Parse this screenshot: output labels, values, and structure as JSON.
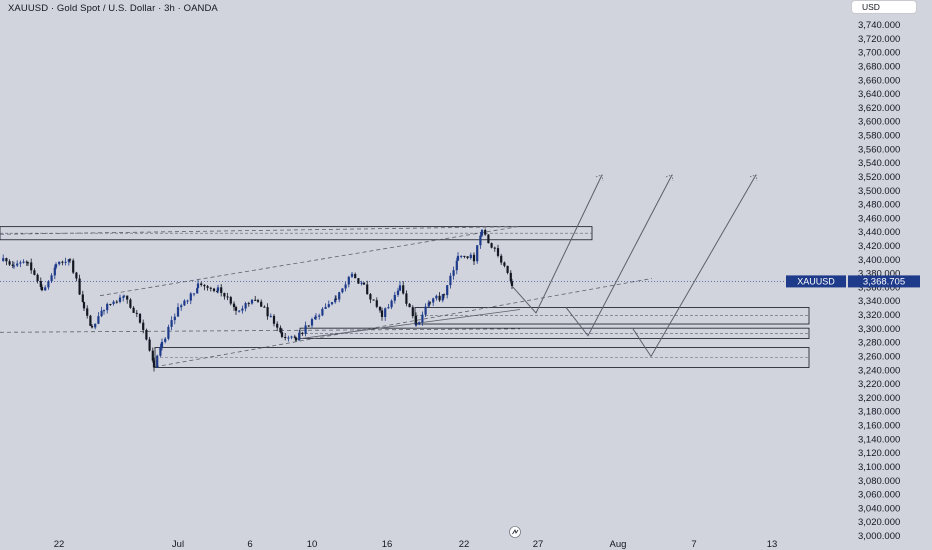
{
  "header": {
    "title": "XAUUSD · Gold Spot / U.S. Dollar · 3h · OANDA",
    "currency": "USD"
  },
  "colors": {
    "background": "#d1d4dc",
    "candle_up": "#1e3a8a",
    "candle_down": "#131722",
    "annotation": "#5d606b",
    "price_badge": "#1e3a8a",
    "text": "#131722"
  },
  "price_label": {
    "symbol": "XAUUSD",
    "value": "3,368.705",
    "price": 3368.705
  },
  "chart_data": {
    "type": "candlestick",
    "title": "XAUUSD · Gold Spot / U.S. Dollar · 3h · OANDA",
    "ylim": [
      3000,
      3760
    ],
    "y_ticks": [
      3000,
      3020,
      3040,
      3060,
      3080,
      3100,
      3120,
      3140,
      3160,
      3180,
      3200,
      3220,
      3240,
      3260,
      3280,
      3300,
      3320,
      3340,
      3360,
      3380,
      3400,
      3420,
      3440,
      3460,
      3480,
      3500,
      3520,
      3540,
      3560,
      3580,
      3600,
      3620,
      3640,
      3660,
      3680,
      3700,
      3720,
      3740
    ],
    "y_tick_labels": [
      "3,000.000",
      "3,020.000",
      "3,040.000",
      "3,060.000",
      "3,080.000",
      "3,100.000",
      "3,120.000",
      "3,140.000",
      "3,160.000",
      "3,180.000",
      "3,200.000",
      "3,220.000",
      "3,240.000",
      "3,260.000",
      "3,280.000",
      "3,300.000",
      "3,320.000",
      "3,340.000",
      "3,360.000",
      "3,380.000",
      "3,400.000",
      "3,420.000",
      "3,440.000",
      "3,460.000",
      "3,480.000",
      "3,500.000",
      "3,520.000",
      "3,540.000",
      "3,560.000",
      "3,580.000",
      "3,600.000",
      "3,620.000",
      "3,640.000",
      "3,660.000",
      "3,680.000",
      "3,700.000",
      "3,720.000",
      "3,740.000"
    ],
    "x_ticks": [
      "22",
      "Jul",
      "6",
      "10",
      "16",
      "22",
      "27",
      "Aug",
      "7",
      "13"
    ],
    "path": [
      [
        0,
        3402
      ],
      [
        14,
        3392
      ],
      [
        28,
        3398
      ],
      [
        42,
        3355
      ],
      [
        56,
        3392
      ],
      [
        70,
        3402
      ],
      [
        84,
        3330
      ],
      [
        92,
        3300
      ],
      [
        104,
        3330
      ],
      [
        124,
        3348
      ],
      [
        140,
        3312
      ],
      [
        154,
        3245
      ],
      [
        162,
        3278
      ],
      [
        178,
        3330
      ],
      [
        198,
        3362
      ],
      [
        218,
        3358
      ],
      [
        236,
        3328
      ],
      [
        258,
        3342
      ],
      [
        282,
        3292
      ],
      [
        296,
        3286
      ],
      [
        316,
        3318
      ],
      [
        336,
        3345
      ],
      [
        352,
        3380
      ],
      [
        364,
        3360
      ],
      [
        382,
        3320
      ],
      [
        400,
        3360
      ],
      [
        416,
        3306
      ],
      [
        430,
        3340
      ],
      [
        444,
        3348
      ],
      [
        458,
        3408
      ],
      [
        474,
        3402
      ],
      [
        482,
        3440
      ],
      [
        498,
        3410
      ],
      [
        512,
        3362
      ]
    ],
    "trendlines": [
      {
        "from": [
          0,
          3437
        ],
        "to": [
          518,
          3448
        ],
        "style": "dashed"
      },
      {
        "from": [
          0,
          3295
        ],
        "to": [
          520,
          3300
        ],
        "style": "dashed"
      },
      {
        "from": [
          100,
          3348
        ],
        "to": [
          518,
          3448
        ],
        "style": "dashed"
      },
      {
        "from": [
          155,
          3245
        ],
        "to": [
          652,
          3373
        ],
        "style": "dashed"
      },
      {
        "from": [
          296,
          3285
        ],
        "to": [
          520,
          3328
        ],
        "style": "solid"
      }
    ],
    "zones": [
      {
        "top": 3448,
        "bottom": 3429
      },
      {
        "top": 3331,
        "bottom": 3307
      },
      {
        "top": 3301,
        "bottom": 3286
      },
      {
        "top": 3273,
        "bottom": 3244
      }
    ],
    "projections": [
      [
        [
          512,
          3362
        ],
        [
          536,
          3323
        ],
        [
          602,
          3523
        ]
      ],
      [
        [
          566,
          3331
        ],
        [
          588,
          3290
        ],
        [
          672,
          3523
        ]
      ],
      [
        [
          633,
          3300
        ],
        [
          651,
          3260
        ],
        [
          756,
          3523
        ]
      ]
    ]
  }
}
